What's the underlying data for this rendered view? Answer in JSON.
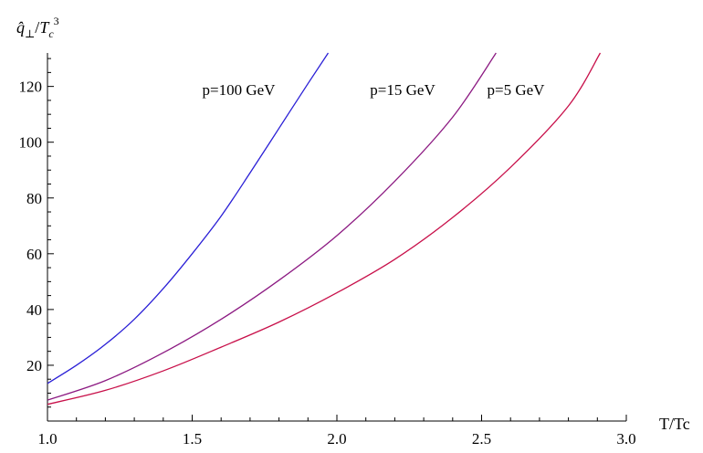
{
  "chart_data": {
    "type": "line",
    "title": "",
    "xlabel": "T/Tc",
    "ylabel": "q̂⊥/Tc³",
    "ylabel_parts": {
      "q": "q̂",
      "sub": "⊥",
      "slash": "/",
      "T": "T",
      "c": "c",
      "exp": "3"
    },
    "xlim": [
      1.0,
      3.0
    ],
    "ylim": [
      0,
      132
    ],
    "xticks": [
      1.0,
      1.5,
      2.0,
      2.5,
      3.0
    ],
    "xtick_labels": [
      "1.0",
      "1.5",
      "2.0",
      "2.5",
      "3.0"
    ],
    "yticks": [
      20,
      40,
      60,
      80,
      100,
      120
    ],
    "ytick_labels": [
      "20",
      "40",
      "60",
      "80",
      "100",
      "120"
    ],
    "grid": false,
    "legend": "none",
    "series": [
      {
        "name": "p=100 GeV",
        "color": "#2a1fd6",
        "x": [
          1.0,
          1.1,
          1.2,
          1.3,
          1.4,
          1.5,
          1.6,
          1.7,
          1.8,
          1.9,
          1.97
        ],
        "y": [
          13.5,
          20,
          27.5,
          36.5,
          47.5,
          60,
          73.5,
          89,
          105,
          121,
          132
        ]
      },
      {
        "name": "p=15 GeV",
        "color": "#8c1a82",
        "x": [
          1.0,
          1.2,
          1.4,
          1.6,
          1.8,
          2.0,
          2.2,
          2.4,
          2.55
        ],
        "y": [
          7.5,
          14.5,
          24.5,
          36.5,
          50.5,
          66.5,
          86,
          109,
          132
        ]
      },
      {
        "name": "p=5 GeV",
        "color": "#c8104a",
        "x": [
          1.0,
          1.2,
          1.4,
          1.6,
          1.8,
          2.0,
          2.2,
          2.4,
          2.6,
          2.8,
          2.91
        ],
        "y": [
          6,
          11,
          18,
          26.5,
          35.5,
          46,
          58,
          73,
          91,
          113,
          132
        ]
      }
    ]
  }
}
